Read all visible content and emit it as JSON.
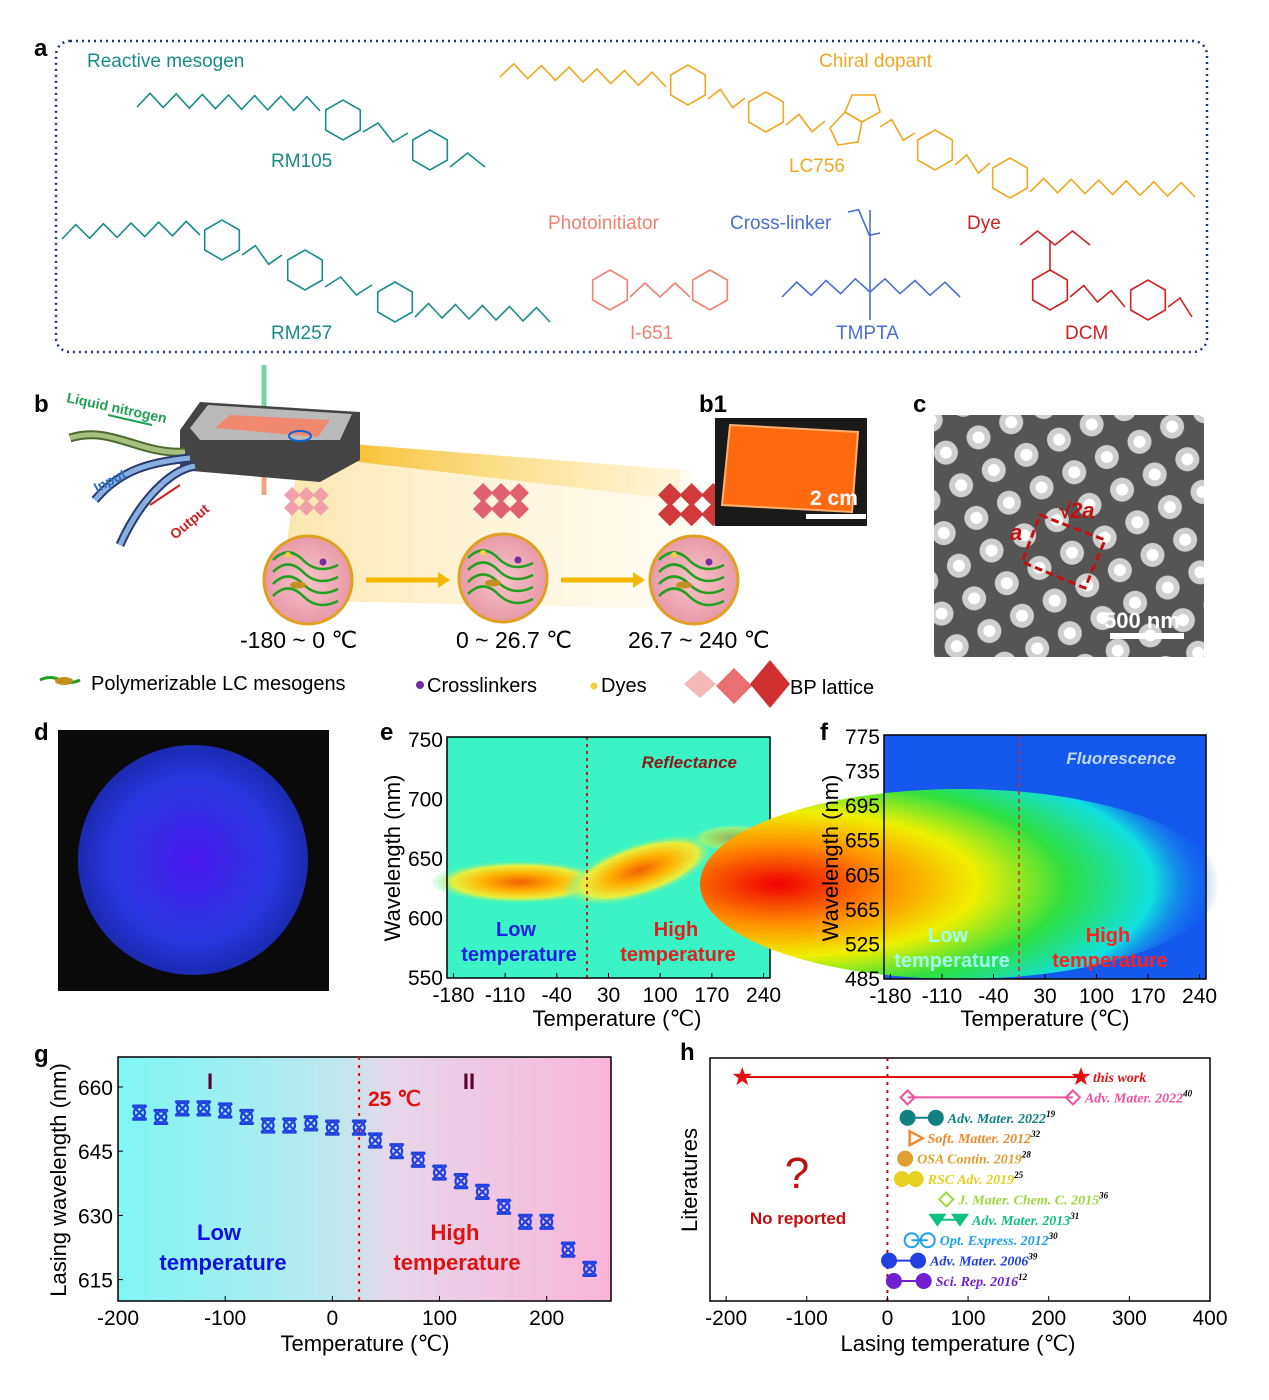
{
  "panel_labels": {
    "a": "a",
    "b": "b",
    "b1": "b1",
    "c": "c",
    "d": "d",
    "e": "e",
    "f": "f",
    "g": "g",
    "h": "h"
  },
  "panel_a": {
    "reactive_mesogen": "Reactive mesogen",
    "chiral_dopant": "Chiral dopant",
    "photoinitiator": "Photoinitiator",
    "cross_linker": "Cross-linker",
    "dye": "Dye",
    "rm105": "RM105",
    "rm257": "RM257",
    "lc756": "LC756",
    "i651": "I-651",
    "tmpta": "TMPTA",
    "dcm": "DCM",
    "colors": {
      "mesogen": "#1a8a8a",
      "chiral": "#f0a820",
      "photo": "#f08070",
      "cross": "#4a6fd0",
      "dye": "#d02020"
    }
  },
  "panel_b": {
    "liquid_nitrogen": "Liquid nitrogen",
    "input": "Input",
    "output": "Output",
    "ranges": [
      "-180 ~ 0 ℃",
      "0 ~ 26.7 ℃",
      "26.7 ~ 240 ℃"
    ],
    "legend": {
      "mesogens": "Polymerizable LC mesogens",
      "crosslinkers": "Crosslinkers",
      "dyes": "Dyes",
      "bp_lattice": "BP lattice"
    }
  },
  "panel_b1": {
    "scale_bar": "2 cm"
  },
  "panel_c": {
    "scale_bar": "500 nm",
    "lattice_a": "a",
    "lattice_sqrt2a": "√2a"
  },
  "panel_e": {
    "title": "Reflectance",
    "ylabel": "Wavelength (nm)",
    "xlabel": "Temperature (℃)",
    "yticks": [
      "750",
      "700",
      "650",
      "600",
      "550"
    ],
    "xticks": [
      "-180",
      "-110",
      "-40",
      "30",
      "100",
      "170",
      "240"
    ],
    "low": [
      "Low",
      "temperature"
    ],
    "high": [
      "High",
      "temperature"
    ]
  },
  "panel_f": {
    "title": "Fluorescence",
    "ylabel": "Wavelength (nm)",
    "xlabel": "Temperature (℃)",
    "yticks": [
      "775",
      "735",
      "695",
      "655",
      "605",
      "565",
      "525",
      "485"
    ],
    "xticks": [
      "-180",
      "-110",
      "-40",
      "30",
      "100",
      "170",
      "240"
    ],
    "low": [
      "Low",
      "temperature"
    ],
    "high": [
      "High",
      "temperature"
    ]
  },
  "chart_data": [
    {
      "type": "scatter",
      "panel": "g",
      "xlabel": "Temperature (℃)",
      "ylabel": "Lasing wavelength (nm)",
      "xlim": [
        -200,
        260
      ],
      "ylim": [
        610,
        667
      ],
      "xticks": [
        "-200",
        "-100",
        "0",
        "100",
        "200"
      ],
      "yticks": [
        "660",
        "645",
        "630",
        "615"
      ],
      "x": [
        -180,
        -160,
        -140,
        -120,
        -100,
        -80,
        -60,
        -40,
        -20,
        0,
        25,
        40,
        60,
        80,
        100,
        120,
        140,
        160,
        180,
        200,
        220,
        240
      ],
      "y": [
        654,
        653,
        655,
        655,
        654.5,
        653,
        651,
        651,
        651.5,
        650.5,
        650.5,
        647.5,
        645,
        643,
        640,
        638,
        635.5,
        632,
        628.5,
        628.5,
        622,
        617.5
      ],
      "marker_color": "#2040e0",
      "divider_x": 25,
      "annotations": {
        "region1": "I",
        "region2": "II",
        "divider": "25 ℃",
        "low": [
          "Low",
          "temperature"
        ],
        "high": [
          "High",
          "temperature"
        ]
      },
      "background": {
        "left": "#80f4f4",
        "right": "#f8b8dc"
      }
    },
    {
      "type": "range",
      "panel": "h",
      "xlabel": "Lasing temperature (℃)",
      "ylabel": "Literatures",
      "xlim": [
        -220,
        400
      ],
      "xticks": [
        "-200",
        "-100",
        "0",
        "100",
        "200",
        "300",
        "400"
      ],
      "divider_x": 0,
      "annotation": {
        "symbol": "?",
        "text": "No reported"
      },
      "series": [
        {
          "name": "this work",
          "ref": "",
          "min": -180,
          "max": 240,
          "color": "#e01010",
          "marker": "star"
        },
        {
          "name": "Adv. Mater. 2022",
          "ref": "40",
          "min": 25,
          "max": 230,
          "color": "#f050a0",
          "marker": "diamond"
        },
        {
          "name": "Adv. Mater. 2022",
          "ref": "19",
          "min": 25,
          "max": 60,
          "color": "#108080",
          "marker": "pentagon"
        },
        {
          "name": "Soft. Matter. 2012",
          "ref": "32",
          "min": 35,
          "max": 35,
          "color": "#f08a30",
          "marker": "triangle"
        },
        {
          "name": "OSA Contin. 2019",
          "ref": "28",
          "min": 22,
          "max": 22,
          "color": "#e0a030",
          "marker": "hexagon"
        },
        {
          "name": "RSC Adv. 2019",
          "ref": "25",
          "min": 18,
          "max": 35,
          "color": "#e8d020",
          "marker": "hexagon"
        },
        {
          "name": "J. Mater. Chem. C. 2015",
          "ref": "36",
          "min": 73,
          "max": 73,
          "color": "#a0d840",
          "marker": "diamond"
        },
        {
          "name": "Adv. Mater. 2013",
          "ref": "31",
          "min": 62,
          "max": 90,
          "color": "#10c080",
          "marker": "triangle-down"
        },
        {
          "name": "Opt. Express. 2012",
          "ref": "30",
          "min": 30,
          "max": 50,
          "color": "#20a0e8",
          "marker": "circle-cross"
        },
        {
          "name": "Adv. Mater. 2006",
          "ref": "39",
          "min": 2,
          "max": 38,
          "color": "#2040e0",
          "marker": "half-circle"
        },
        {
          "name": "Sci. Rep. 2016",
          "ref": "12",
          "min": 8,
          "max": 45,
          "color": "#7020d0",
          "marker": "arrow"
        }
      ]
    }
  ]
}
